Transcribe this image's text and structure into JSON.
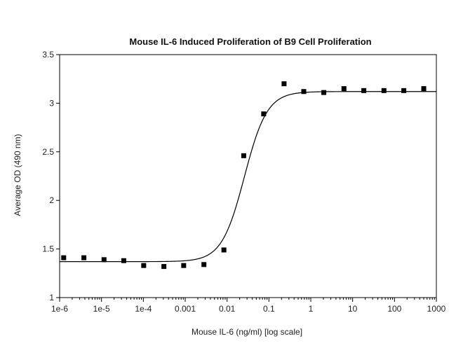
{
  "chart_data": {
    "type": "scatter",
    "title": "Mouse IL-6 Induced Proliferation of B9 Cell Proliferation",
    "xlabel": "Mouse IL-6 (ng/ml) [log scale]",
    "ylabel": "Average OD (490 nm)",
    "xscale": "log",
    "xlim": [
      1e-06,
      1000
    ],
    "ylim": [
      1,
      3.5
    ],
    "grid": false,
    "x_ticks": [
      {
        "value": 1e-06,
        "label": "1e-6"
      },
      {
        "value": 1e-05,
        "label": "1e-5"
      },
      {
        "value": 0.0001,
        "label": "1e-4"
      },
      {
        "value": 0.001,
        "label": "0.001"
      },
      {
        "value": 0.01,
        "label": "0.01"
      },
      {
        "value": 0.1,
        "label": "0.1"
      },
      {
        "value": 1,
        "label": "1"
      },
      {
        "value": 10,
        "label": "10"
      },
      {
        "value": 100,
        "label": "100"
      },
      {
        "value": 1000,
        "label": "1000"
      }
    ],
    "y_ticks": [
      {
        "value": 1,
        "label": "1"
      },
      {
        "value": 1.5,
        "label": "1.5"
      },
      {
        "value": 2,
        "label": "2"
      },
      {
        "value": 2.5,
        "label": "2.5"
      },
      {
        "value": 3,
        "label": "3"
      },
      {
        "value": 3.5,
        "label": "3.5"
      }
    ],
    "series": [
      {
        "marker": "square",
        "color": "#000000",
        "x": [
          1.25e-06,
          3.8e-06,
          1.15e-05,
          3.4e-05,
          0.000102,
          0.00031,
          0.00092,
          0.0028,
          0.0084,
          0.025,
          0.075,
          0.23,
          0.68,
          2.05,
          6.2,
          18.5,
          56,
          167,
          500
        ],
        "y": [
          1.41,
          1.41,
          1.39,
          1.38,
          1.33,
          1.32,
          1.33,
          1.34,
          1.49,
          2.46,
          2.89,
          3.2,
          3.12,
          3.11,
          3.15,
          3.13,
          3.13,
          3.13,
          3.15
        ]
      }
    ],
    "fit_curve": {
      "type": "4PL",
      "bottom": 1.37,
      "top": 3.12,
      "ec50": 0.026,
      "hill": 1.6,
      "color": "#000000"
    }
  }
}
